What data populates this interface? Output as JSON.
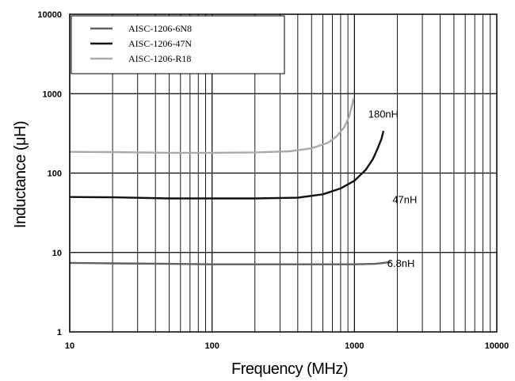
{
  "chart_data": {
    "type": "line",
    "x_scale": "log",
    "y_scale": "log",
    "xlim": [
      10,
      10000
    ],
    "ylim": [
      1,
      10000
    ],
    "xlabel": "Frequency (MHz)",
    "ylabel": "Inductance (μH)",
    "x_ticks": [
      "10",
      "100",
      "1000",
      "10000"
    ],
    "y_ticks": [
      "1",
      "10",
      "100",
      "1000",
      "10000"
    ],
    "grid": true,
    "legend_position": "top-left",
    "series": [
      {
        "name": "AISC-1206-6N8",
        "color": "#606060",
        "annotation": "6.8nH",
        "points": [
          [
            10,
            7.4
          ],
          [
            20,
            7.3
          ],
          [
            50,
            7.2
          ],
          [
            100,
            7.1
          ],
          [
            200,
            7.1
          ],
          [
            500,
            7.1
          ],
          [
            1000,
            7.1
          ],
          [
            1400,
            7.2
          ],
          [
            1600,
            7.4
          ],
          [
            1800,
            7.6
          ]
        ]
      },
      {
        "name": "AISC-1206-47N",
        "color": "#111111",
        "annotation": "47nH",
        "points": [
          [
            10,
            50
          ],
          [
            20,
            49.5
          ],
          [
            50,
            48
          ],
          [
            100,
            48
          ],
          [
            200,
            48
          ],
          [
            400,
            49
          ],
          [
            600,
            54
          ],
          [
            800,
            64
          ],
          [
            1000,
            80
          ],
          [
            1200,
            110
          ],
          [
            1350,
            150
          ],
          [
            1450,
            200
          ],
          [
            1550,
            270
          ],
          [
            1600,
            340
          ]
        ]
      },
      {
        "name": "AISC-1206-R18",
        "color": "#aaaaaa",
        "annotation": "180nH",
        "points": [
          [
            10,
            185
          ],
          [
            20,
            184
          ],
          [
            50,
            180
          ],
          [
            100,
            180
          ],
          [
            200,
            182
          ],
          [
            350,
            188
          ],
          [
            500,
            205
          ],
          [
            650,
            240
          ],
          [
            750,
            290
          ],
          [
            850,
            380
          ],
          [
            920,
            520
          ],
          [
            960,
            700
          ],
          [
            985,
            880
          ]
        ]
      }
    ]
  }
}
